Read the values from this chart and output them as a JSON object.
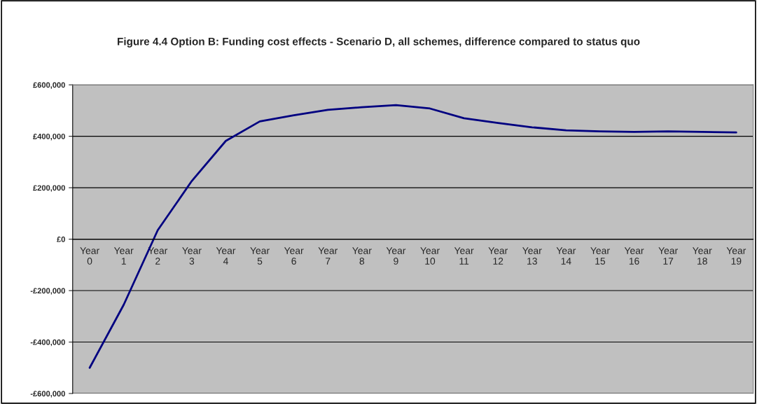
{
  "chart_data": {
    "type": "line",
    "title": "Figure 4.4 Option B: Funding cost effects - Scenario D, all schemes, difference compared to status quo",
    "categories": [
      "Year 0",
      "Year 1",
      "Year 2",
      "Year 3",
      "Year 4",
      "Year 5",
      "Year 6",
      "Year 7",
      "Year 8",
      "Year 9",
      "Year 10",
      "Year 11",
      "Year 12",
      "Year 13",
      "Year 14",
      "Year 15",
      "Year 16",
      "Year 17",
      "Year 18",
      "Year 19"
    ],
    "series": [
      {
        "color": "#000080",
        "values": [
          -500000,
          -255000,
          35000,
          226000,
          382000,
          458000,
          482000,
          503000,
          513000,
          521000,
          508000,
          470000,
          452000,
          435000,
          423000,
          419000,
          417000,
          419000,
          417000,
          415000
        ]
      }
    ],
    "ylim": [
      -600000,
      600000
    ],
    "yticks": [
      {
        "value": -600000,
        "label": "-£600,000"
      },
      {
        "value": -400000,
        "label": "-£400,000"
      },
      {
        "value": -200000,
        "label": "-£200,000"
      },
      {
        "value": 0,
        "label": "£0"
      },
      {
        "value": 200000,
        "label": "£200,000"
      },
      {
        "value": 400000,
        "label": "£400,000"
      },
      {
        "value": 600000,
        "label": "£600,000"
      }
    ],
    "grid": "y",
    "marker": "none",
    "line_style": "solid",
    "legend": false
  }
}
